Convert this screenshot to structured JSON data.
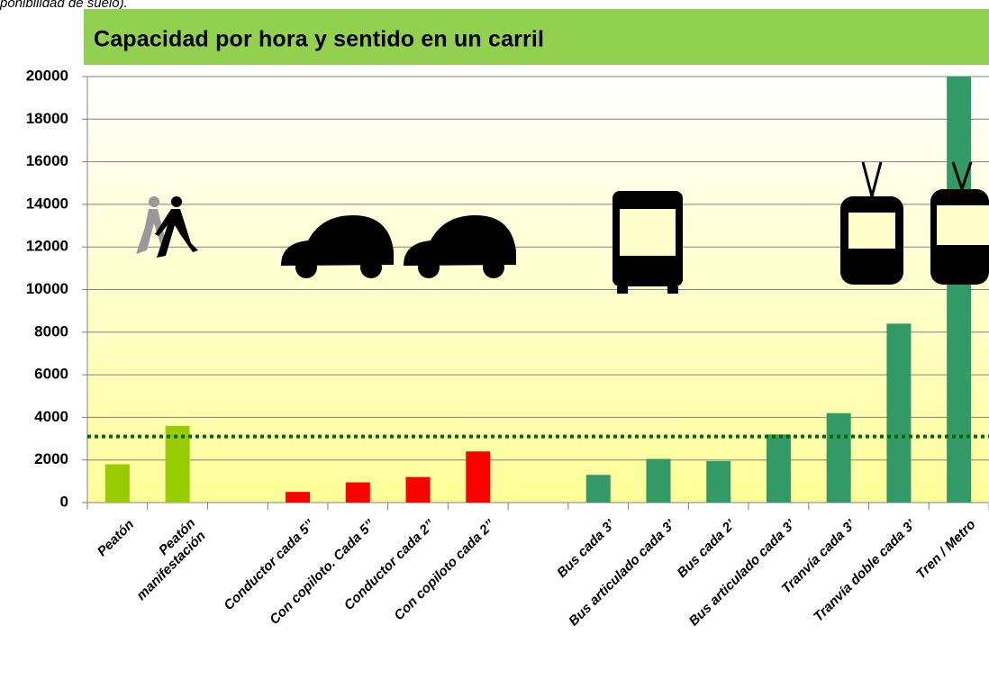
{
  "chart_data": {
    "type": "bar",
    "caption": "ponibilidad de suelo).",
    "title": "Capacidad por hora y sentido en un carril",
    "categories": [
      [
        "Peatón"
      ],
      [
        "Peatón",
        "manifestación"
      ],
      null,
      [
        "Conductor cada 5’’"
      ],
      [
        "Con copiloto. Cada 5’’"
      ],
      [
        "Conductor cada 2’’"
      ],
      [
        "Con copiloto cada 2’’"
      ],
      null,
      [
        "Bus cada 3’"
      ],
      [
        "Bus articulado cada 3’"
      ],
      [
        "Bus cada 2’"
      ],
      [
        "Bus articulado cada 3’"
      ],
      [
        "Tranvía cada 3’"
      ],
      [
        "Tranvía doble cada 3’"
      ],
      [
        "Tren / Metro"
      ]
    ],
    "values": [
      1800,
      3600,
      null,
      500,
      950,
      1200,
      2400,
      null,
      1300,
      2050,
      1950,
      3200,
      4200,
      8400,
      20000
    ],
    "colors": [
      "#99cc00",
      "#99cc00",
      null,
      "#ff0000",
      "#ff0000",
      "#ff0000",
      "#ff0000",
      null,
      "#339966",
      "#339966",
      "#339966",
      "#339966",
      "#339966",
      "#339966",
      "#339966"
    ],
    "reference_line": 3100,
    "reference_color": "#006600",
    "ylim": [
      0,
      20000
    ],
    "yticks": [
      0,
      2000,
      4000,
      6000,
      8000,
      10000,
      12000,
      14000,
      16000,
      18000,
      20000
    ],
    "grid": true
  }
}
